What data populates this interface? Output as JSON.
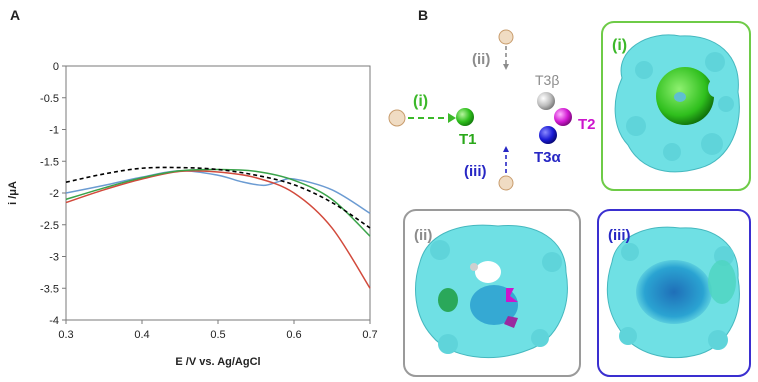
{
  "panel_a_label": "A",
  "panel_b_label": "B",
  "chart_data": {
    "type": "line",
    "title": "",
    "xlabel": "E /V vs. Ag/AgCl",
    "ylabel": "i /μA",
    "xlim": [
      0.3,
      0.7
    ],
    "ylim": [
      -4,
      0
    ],
    "x_ticks": [
      0.3,
      0.4,
      0.5,
      0.6,
      0.7
    ],
    "x_tick_labels": [
      "0.3",
      "0.4",
      "0.5",
      "0.6",
      "0.7"
    ],
    "y_ticks": [
      0,
      -0.5,
      -1,
      -1.5,
      -2,
      -2.5,
      -3,
      -3.5,
      -4
    ],
    "y_tick_labels": [
      "0",
      "-0.5",
      "-1",
      "-1.5",
      "-2",
      "-2.5",
      "-3",
      "-3.5",
      "-4"
    ],
    "grid": false,
    "series": [
      {
        "color": "#6b9bd2",
        "dash": "solid",
        "x": [
          0.3,
          0.35,
          0.4,
          0.45,
          0.5,
          0.53,
          0.56,
          0.58,
          0.6,
          0.65,
          0.7
        ],
        "y": [
          -2.0,
          -1.88,
          -1.75,
          -1.65,
          -1.72,
          -1.82,
          -1.88,
          -1.82,
          -1.78,
          -1.95,
          -2.32
        ]
      },
      {
        "color": "#d24a3c",
        "dash": "solid",
        "x": [
          0.3,
          0.35,
          0.4,
          0.45,
          0.5,
          0.55,
          0.6,
          0.65,
          0.7
        ],
        "y": [
          -2.15,
          -1.95,
          -1.78,
          -1.66,
          -1.67,
          -1.76,
          -2.0,
          -2.55,
          -3.5
        ]
      },
      {
        "color": "#3aa34a",
        "dash": "solid",
        "x": [
          0.3,
          0.35,
          0.4,
          0.45,
          0.5,
          0.55,
          0.6,
          0.65,
          0.7
        ],
        "y": [
          -2.1,
          -1.92,
          -1.76,
          -1.65,
          -1.63,
          -1.66,
          -1.8,
          -2.1,
          -2.68
        ]
      },
      {
        "color": "#000000",
        "dash": "dashed",
        "x": [
          0.3,
          0.35,
          0.4,
          0.45,
          0.5,
          0.55,
          0.6,
          0.65,
          0.7
        ],
        "y": [
          -1.83,
          -1.7,
          -1.61,
          -1.6,
          -1.63,
          -1.72,
          -1.87,
          -2.15,
          -2.55
        ]
      }
    ]
  },
  "diagram": {
    "labels": {
      "i": "(i)",
      "ii": "(ii)",
      "iii": "(iii)",
      "t1": "T1",
      "t2": "T2",
      "t3b": "T3β",
      "t3a": "T3α"
    },
    "colors": {
      "i": "#3cb82a",
      "ii": "#8c8c8c",
      "iii": "#2727c4",
      "t2": "#cc16cc",
      "frame_i": "#6ecb47",
      "frame_ii": "#9a9a9a",
      "frame_iii": "#3a2fd0",
      "protein": "#6fe0e4"
    }
  }
}
